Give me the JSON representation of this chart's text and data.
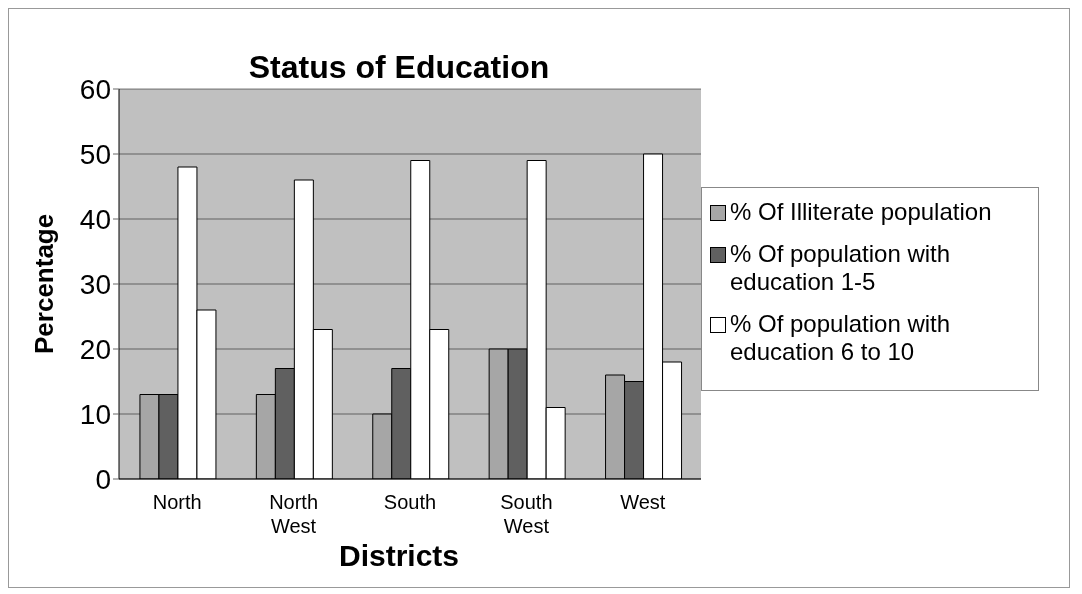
{
  "chart_data": {
    "type": "bar",
    "title": "Status of Education",
    "xlabel": "Districts",
    "ylabel": "Percentage",
    "categories": [
      "North",
      "North West",
      "South",
      "South West",
      "West"
    ],
    "series": [
      {
        "name": "% Of Illiterate population",
        "color": "#a6a6a6",
        "values": [
          13,
          13,
          10,
          20,
          16
        ]
      },
      {
        "name": "% Of population with education 1-5",
        "color": "#606060",
        "values": [
          13,
          17,
          17,
          20,
          15
        ]
      },
      {
        "name": "% Of population with education 6 to 10",
        "color": "#ffffff",
        "values": [
          48,
          46,
          49,
          49,
          50
        ]
      },
      {
        "color": "#ffffff",
        "values": [
          26,
          23,
          23,
          11,
          18
        ]
      }
    ],
    "ylim": [
      0,
      60
    ],
    "yticks": [
      0,
      10,
      20,
      30,
      40,
      50,
      60
    ],
    "grid": "y",
    "legend": "right"
  }
}
